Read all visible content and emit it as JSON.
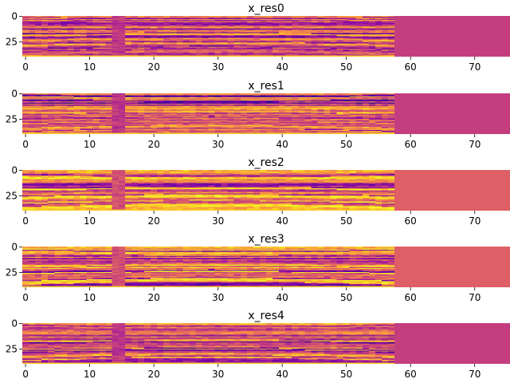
{
  "chart_data": [
    {
      "type": "heatmap",
      "title": "x_res0",
      "xticks": [
        0,
        10,
        20,
        30,
        40,
        50,
        60,
        70
      ],
      "yticks": [
        0,
        25
      ],
      "xlim": [
        -0.5,
        75.5
      ],
      "ylim": [
        39.5,
        -0.5
      ],
      "rows": 40,
      "cols": 76,
      "data_cols": 58,
      "fill_color": "#c43e7f",
      "colormap": "plasma"
    },
    {
      "type": "heatmap",
      "title": "x_res1",
      "xticks": [
        0,
        10,
        20,
        30,
        40,
        50,
        60,
        70
      ],
      "yticks": [
        0,
        25
      ],
      "xlim": [
        -0.5,
        75.5
      ],
      "ylim": [
        39.5,
        -0.5
      ],
      "rows": 40,
      "cols": 76,
      "data_cols": 58,
      "fill_color": "#c43e7f",
      "colormap": "plasma"
    },
    {
      "type": "heatmap",
      "title": "x_res2",
      "xticks": [
        0,
        10,
        20,
        30,
        40,
        50,
        60,
        70
      ],
      "yticks": [
        0,
        25
      ],
      "xlim": [
        -0.5,
        75.5
      ],
      "ylim": [
        39.5,
        -0.5
      ],
      "rows": 40,
      "cols": 76,
      "data_cols": 58,
      "fill_color": "#de5f65",
      "colormap": "plasma"
    },
    {
      "type": "heatmap",
      "title": "x_res3",
      "xticks": [
        0,
        10,
        20,
        30,
        40,
        50,
        60,
        70
      ],
      "yticks": [
        0,
        25
      ],
      "xlim": [
        -0.5,
        75.5
      ],
      "ylim": [
        39.5,
        -0.5
      ],
      "rows": 40,
      "cols": 76,
      "data_cols": 58,
      "fill_color": "#de5f65",
      "colormap": "plasma"
    },
    {
      "type": "heatmap",
      "title": "x_res4",
      "xticks": [
        0,
        10,
        20,
        30,
        40,
        50,
        60,
        70
      ],
      "yticks": [
        0,
        25
      ],
      "xlim": [
        -0.5,
        75.5
      ],
      "ylim": [
        39.5,
        -0.5
      ],
      "rows": 40,
      "cols": 76,
      "data_cols": 58,
      "fill_color": "#c43e7f",
      "colormap": "plasma"
    }
  ]
}
